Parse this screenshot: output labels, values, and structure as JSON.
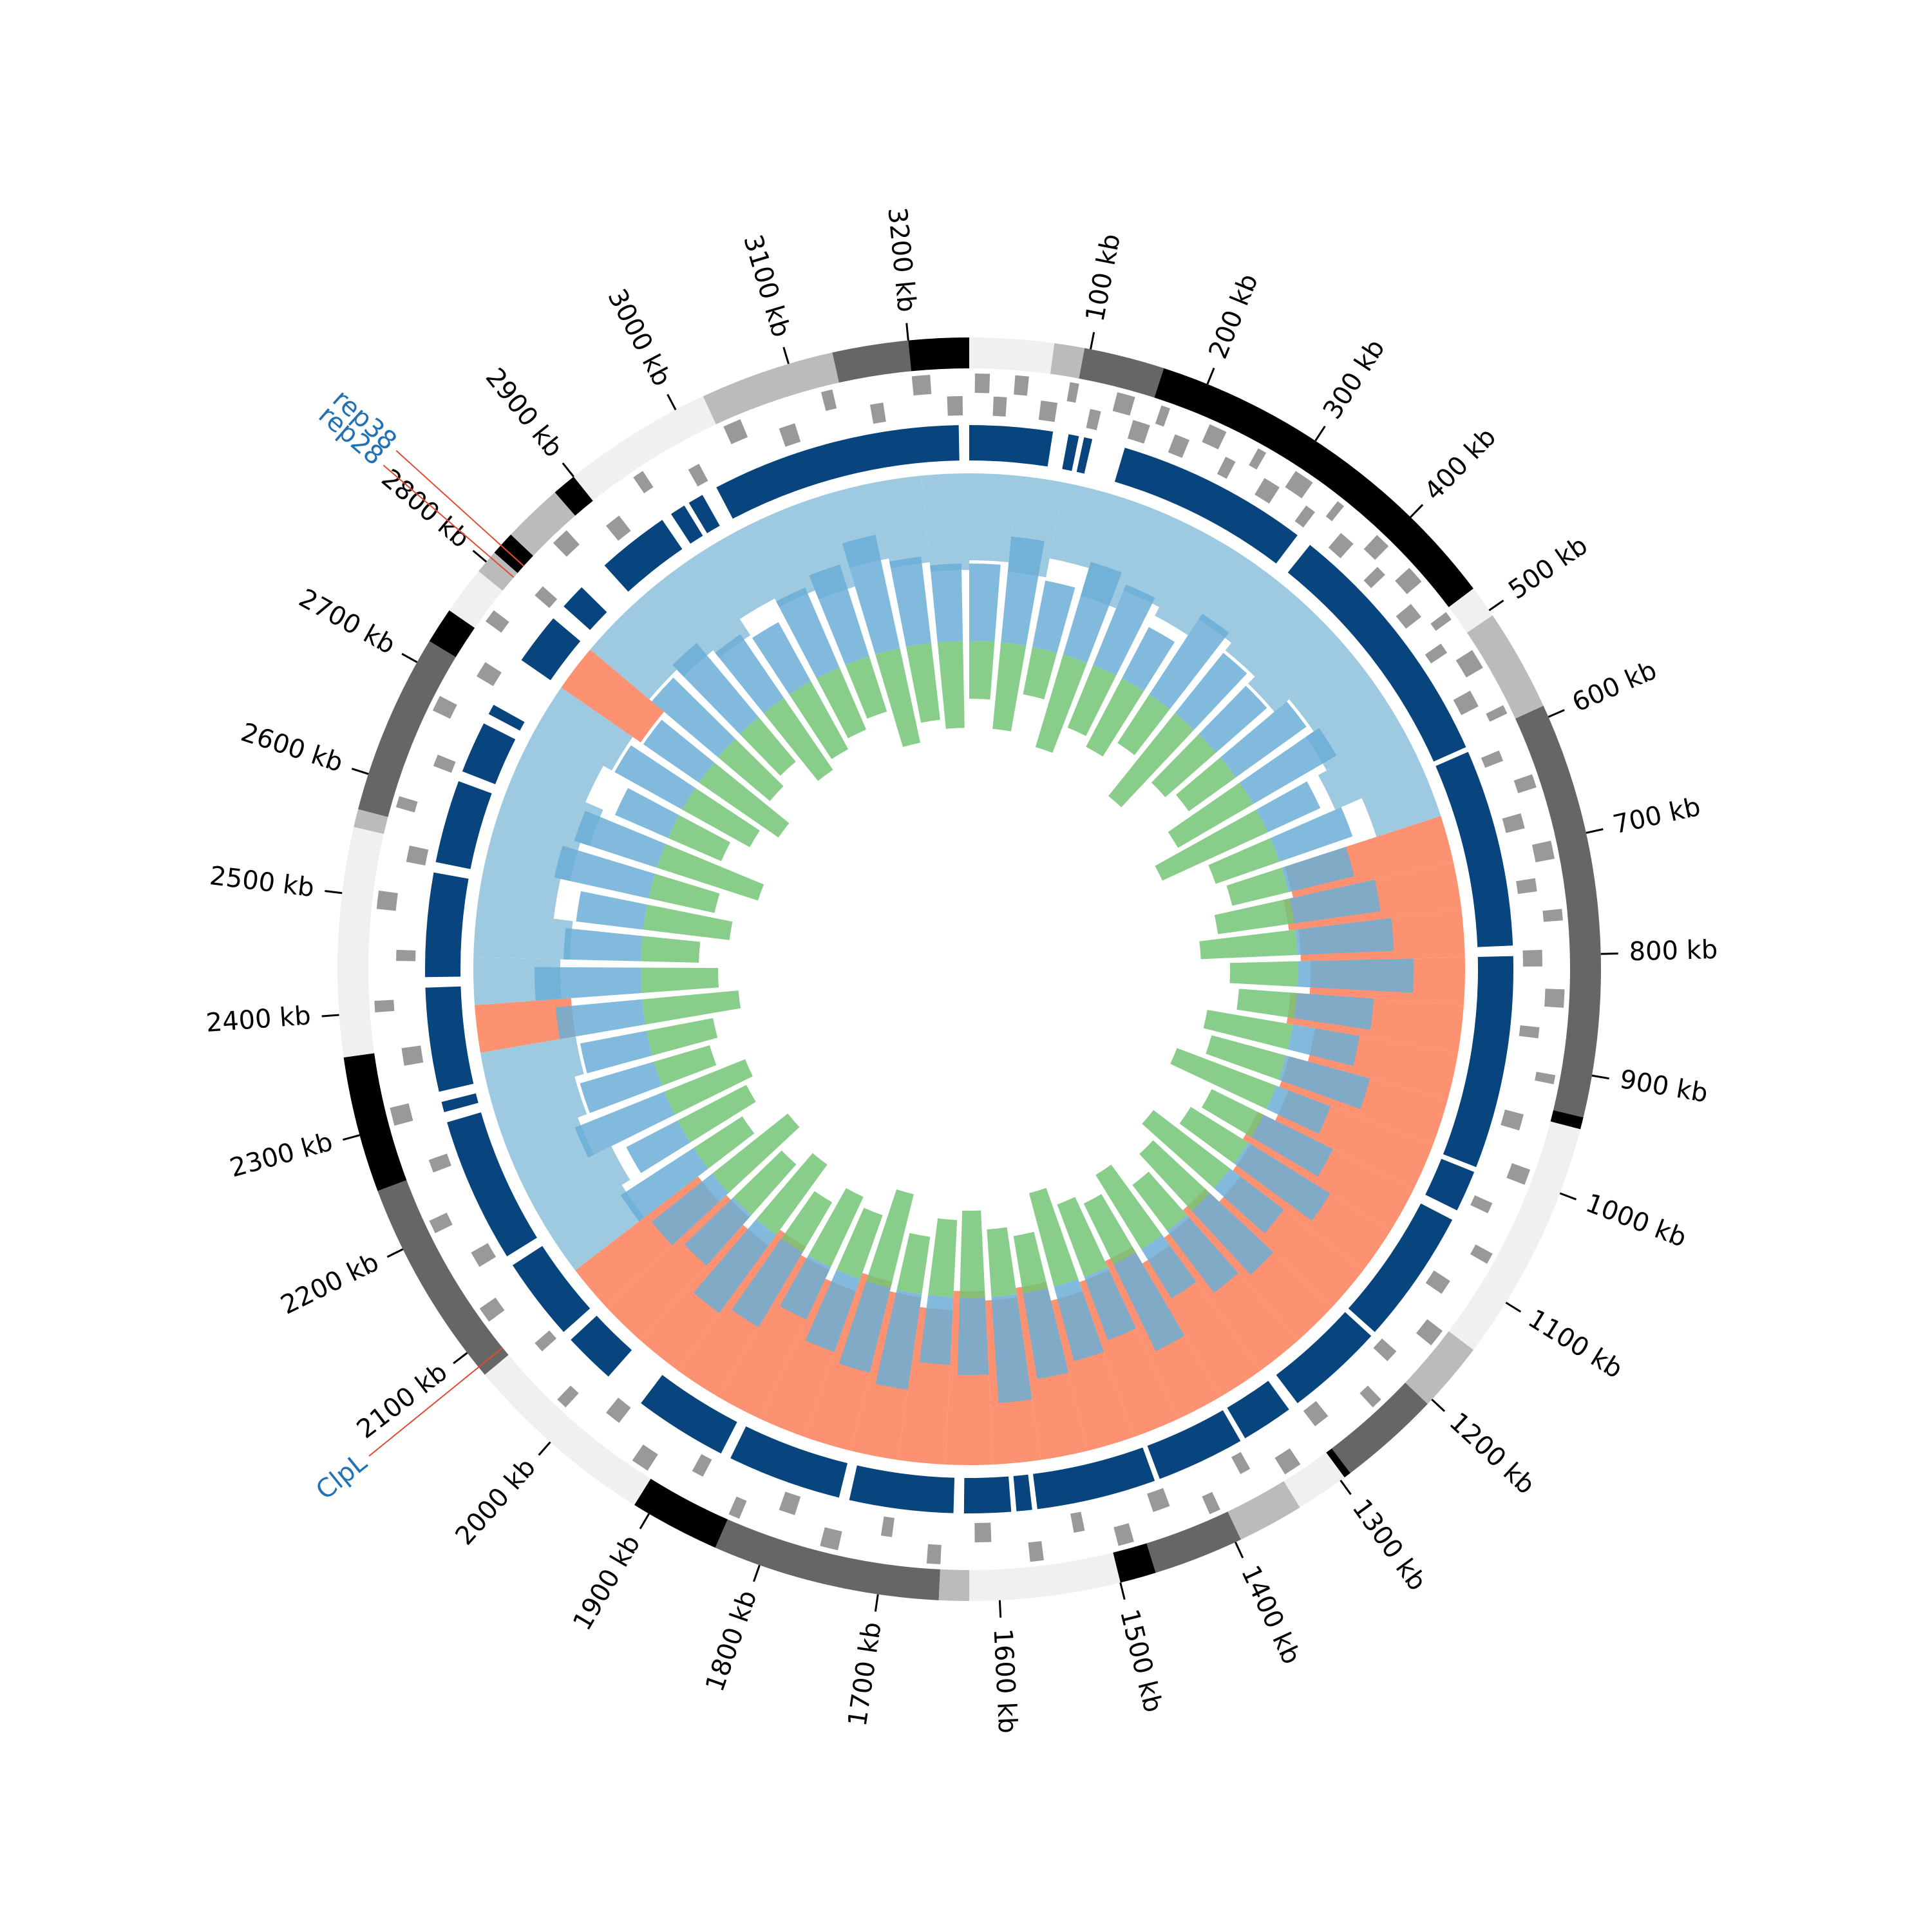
{
  "chart_data": {
    "type": "circos",
    "xlim": [
      0,
      3250
    ],
    "xticks": [
      {
        "value": 100,
        "label": "100 kb"
      },
      {
        "value": 200,
        "label": "200 kb"
      },
      {
        "value": 300,
        "label": "300 kb"
      },
      {
        "value": 400,
        "label": "400 kb"
      },
      {
        "value": 500,
        "label": "500 kb"
      },
      {
        "value": 600,
        "label": "600 kb"
      },
      {
        "value": 700,
        "label": "700 kb"
      },
      {
        "value": 800,
        "label": "800 kb"
      },
      {
        "value": 900,
        "label": "900 kb"
      },
      {
        "value": 1000,
        "label": "1000 kb"
      },
      {
        "value": 1100,
        "label": "1100 kb"
      },
      {
        "value": 1200,
        "label": "1200 kb"
      },
      {
        "value": 1300,
        "label": "1300 kb"
      },
      {
        "value": 1400,
        "label": "1400 kb"
      },
      {
        "value": 1500,
        "label": "1500 kb"
      },
      {
        "value": 1600,
        "label": "1600 kb"
      },
      {
        "value": 1700,
        "label": "1700 kb"
      },
      {
        "value": 1800,
        "label": "1800 kb"
      },
      {
        "value": 1900,
        "label": "1900 kb"
      },
      {
        "value": 2000,
        "label": "2000 kb"
      },
      {
        "value": 2100,
        "label": "2100 kb"
      },
      {
        "value": 2200,
        "label": "2200 kb"
      },
      {
        "value": 2300,
        "label": "2300 kb"
      },
      {
        "value": 2400,
        "label": "2400 kb"
      },
      {
        "value": 2500,
        "label": "2500 kb"
      },
      {
        "value": 2600,
        "label": "2600 kb"
      },
      {
        "value": 2700,
        "label": "2700 kb"
      },
      {
        "value": 2800,
        "label": "2800 kb"
      },
      {
        "value": 2900,
        "label": "2900 kb"
      },
      {
        "value": 3000,
        "label": "3000 kb"
      },
      {
        "value": 3100,
        "label": "3100 kb"
      },
      {
        "value": 3200,
        "label": "3200 kb"
      }
    ],
    "bands": [
      {
        "start": 0,
        "end": 70,
        "color": "#f0f0f0"
      },
      {
        "start": 70,
        "end": 95,
        "color": "#bbbbbb"
      },
      {
        "start": 95,
        "end": 162,
        "color": "#666666"
      },
      {
        "start": 162,
        "end": 478,
        "color": "#000000"
      },
      {
        "start": 478,
        "end": 505,
        "color": "#f0f0f0"
      },
      {
        "start": 505,
        "end": 590,
        "color": "#bbbbbb"
      },
      {
        "start": 590,
        "end": 935,
        "color": "#666666"
      },
      {
        "start": 935,
        "end": 945,
        "color": "#000000"
      },
      {
        "start": 945,
        "end": 1147,
        "color": "#f0f0f0"
      },
      {
        "start": 1147,
        "end": 1205,
        "color": "#bbbbbb"
      },
      {
        "start": 1205,
        "end": 1290,
        "color": "#666666"
      },
      {
        "start": 1290,
        "end": 1296,
        "color": "#000000"
      },
      {
        "start": 1296,
        "end": 1340,
        "color": "#f0f0f0"
      },
      {
        "start": 1340,
        "end": 1395,
        "color": "#bbbbbb"
      },
      {
        "start": 1395,
        "end": 1470,
        "color": "#666666"
      },
      {
        "start": 1470,
        "end": 1500,
        "color": "#000000"
      },
      {
        "start": 1500,
        "end": 1625,
        "color": "#f0f0f0"
      },
      {
        "start": 1625,
        "end": 1650,
        "color": "#bbbbbb"
      },
      {
        "start": 1650,
        "end": 1839,
        "color": "#666666"
      },
      {
        "start": 1839,
        "end": 1914,
        "color": "#000000"
      },
      {
        "start": 1914,
        "end": 2077,
        "color": "#f0f0f0"
      },
      {
        "start": 2077,
        "end": 2252,
        "color": "#666666"
      },
      {
        "start": 2252,
        "end": 2365,
        "color": "#000000"
      },
      {
        "start": 2365,
        "end": 2555,
        "color": "#f0f0f0"
      },
      {
        "start": 2555,
        "end": 2570,
        "color": "#bbbbbb"
      },
      {
        "start": 2570,
        "end": 2720,
        "color": "#666666"
      },
      {
        "start": 2720,
        "end": 2750,
        "color": "#000000"
      },
      {
        "start": 2750,
        "end": 2790,
        "color": "#f0f0f0"
      },
      {
        "start": 2790,
        "end": 2810,
        "color": "#bbbbbb"
      },
      {
        "start": 2810,
        "end": 2830,
        "color": "#000000"
      },
      {
        "start": 2830,
        "end": 2880,
        "color": "#bbbbbb"
      },
      {
        "start": 2880,
        "end": 2900,
        "color": "#000000"
      },
      {
        "start": 2900,
        "end": 3025,
        "color": "#f0f0f0"
      },
      {
        "start": 3025,
        "end": 3137,
        "color": "#bbbbbb"
      },
      {
        "start": 3137,
        "end": 3200,
        "color": "#666666"
      },
      {
        "start": 3200,
        "end": 3250,
        "color": "#000000"
      }
    ],
    "gene_color": "#999999",
    "genes": {
      "plus": [
        [
          5,
          18
        ],
        [
          40,
          52
        ],
        [
          88,
          96
        ],
        [
          130,
          146
        ],
        [
          170,
          178
        ],
        [
          215,
          231
        ],
        [
          262,
          270
        ],
        [
          300,
          318
        ],
        [
          345,
          352
        ],
        [
          390,
          404
        ],
        [
          430,
          446
        ],
        [
          480,
          488
        ],
        [
          520,
          538
        ],
        [
          575,
          583
        ],
        [
          640,
          652
        ],
        [
          700,
          716
        ],
        [
          760,
          770
        ],
        [
          830,
          846
        ],
        [
          905,
          913
        ],
        [
          990,
          1004
        ],
        [
          1070,
          1080
        ],
        [
          1150,
          1166
        ],
        [
          1230,
          1240
        ],
        [
          1320,
          1336
        ],
        [
          1400,
          1410
        ],
        [
          1480,
          1494
        ],
        [
          1560,
          1572
        ],
        [
          1650,
          1662
        ],
        [
          1740,
          1756
        ],
        [
          1830,
          1840
        ],
        [
          1920,
          1936
        ],
        [
          2010,
          2020
        ],
        [
          2110,
          2124
        ],
        [
          2200,
          2212
        ],
        [
          2300,
          2316
        ],
        [
          2400,
          2410
        ],
        [
          2490,
          2506
        ],
        [
          2580,
          2590
        ],
        [
          2670,
          2684
        ],
        [
          2760,
          2772
        ],
        [
          2850,
          2866
        ],
        [
          2940,
          2950
        ],
        [
          3030,
          3046
        ],
        [
          3120,
          3130
        ],
        [
          3200,
          3216
        ]
      ],
      "minus": [
        [
          22,
          34
        ],
        [
          65,
          80
        ],
        [
          110,
          120
        ],
        [
          150,
          166
        ],
        [
          190,
          204
        ],
        [
          240,
          250
        ],
        [
          280,
          296
        ],
        [
          325,
          335
        ],
        [
          365,
          380
        ],
        [
          410,
          420
        ],
        [
          455,
          470
        ],
        [
          500,
          510
        ],
        [
          550,
          566
        ],
        [
          610,
          620
        ],
        [
          670,
          684
        ],
        [
          730,
          742
        ],
        [
          795,
          810
        ],
        [
          865,
          875
        ],
        [
          945,
          960
        ],
        [
          1030,
          1040
        ],
        [
          1110,
          1124
        ],
        [
          1190,
          1202
        ],
        [
          1275,
          1290
        ],
        [
          1360,
          1370
        ],
        [
          1440,
          1456
        ],
        [
          1520,
          1530
        ],
        [
          1605,
          1620
        ],
        [
          1695,
          1705
        ],
        [
          1785,
          1800
        ],
        [
          1875,
          1886
        ],
        [
          1965,
          1980
        ],
        [
          2060,
          2070
        ],
        [
          2155,
          2170
        ],
        [
          2250,
          2262
        ],
        [
          2350,
          2366
        ],
        [
          2445,
          2455
        ],
        [
          2535,
          2550
        ],
        [
          2625,
          2636
        ],
        [
          2715,
          2730
        ],
        [
          2805,
          2816
        ],
        [
          2895,
          2910
        ],
        [
          2985,
          2996
        ],
        [
          3075,
          3090
        ],
        [
          3160,
          3172
        ],
        [
          3230,
          3244
        ]
      ]
    },
    "blocks": {
      "color": "#08457e",
      "segments": [
        [
          0,
          80
        ],
        [
          95,
          105
        ],
        [
          110,
          118
        ],
        [
          150,
          335
        ],
        [
          350,
          595
        ],
        [
          600,
          790
        ],
        [
          800,
          1005
        ],
        [
          1010,
          1050
        ],
        [
          1060,
          1190
        ],
        [
          1195,
          1290
        ],
        [
          1300,
          1350
        ],
        [
          1355,
          1440
        ],
        [
          1445,
          1560
        ],
        [
          1565,
          1580
        ],
        [
          1585,
          1630
        ],
        [
          1640,
          1740
        ],
        [
          1750,
          1860
        ],
        [
          1870,
          1960
        ],
        [
          2000,
          2050
        ],
        [
          2060,
          2140
        ],
        [
          2150,
          2290
        ],
        [
          2300,
          2310
        ],
        [
          2320,
          2420
        ],
        [
          2430,
          2530
        ],
        [
          2540,
          2620
        ],
        [
          2630,
          2680
        ],
        [
          2690,
          2700
        ],
        [
          2750,
          2800
        ],
        [
          2815,
          2840
        ],
        [
          2870,
          2940
        ],
        [
          2950,
          2965
        ],
        [
          2970,
          2985
        ],
        [
          3000,
          3240
        ]
      ]
    },
    "x": [
      0,
      50,
      100,
      150,
      200,
      250,
      300,
      350,
      400,
      450,
      500,
      550,
      600,
      650,
      700,
      750,
      800,
      850,
      900,
      950,
      1000,
      1050,
      1100,
      1150,
      1200,
      1250,
      1300,
      1350,
      1400,
      1450,
      1500,
      1550,
      1600,
      1650,
      1700,
      1750,
      1800,
      1850,
      1900,
      1950,
      2000,
      2050,
      2100,
      2150,
      2200,
      2250,
      2300,
      2350,
      2400,
      2450,
      2500,
      2550,
      2600,
      2650,
      2700,
      2750,
      2800,
      2850,
      2900,
      2950,
      3000,
      3050,
      3100,
      3150,
      3200
    ],
    "gc": {
      "positive_color": "#9ecae1",
      "negative_color": "#fc9272",
      "values": [
        0.45,
        0.5,
        0.4,
        0.55,
        0.45,
        0.5,
        0.4,
        0.45,
        0.5,
        0.4,
        0.45,
        0.5,
        0.35,
        -0.85,
        -0.9,
        -0.85,
        -0.8,
        -0.9,
        -0.75,
        -0.85,
        -0.8,
        -0.9,
        -0.85,
        -0.8,
        -0.9,
        -0.85,
        -0.8,
        -0.9,
        -0.85,
        -0.8,
        -0.9,
        -0.85,
        -0.9,
        -0.8,
        -0.85,
        -0.9,
        -0.8,
        -0.85,
        -0.9,
        -0.8,
        -0.85,
        -0.8,
        0.45,
        0.5,
        0.4,
        0.45,
        0.5,
        -0.5,
        0.45,
        0.5,
        0.4,
        0.45,
        0.5,
        0.4,
        0.45,
        -0.5,
        0.4,
        0.45,
        0.5,
        0.4,
        0.45,
        0.5,
        0.4,
        0.45,
        0.5
      ]
    },
    "skew": {
      "series": [
        {
          "color": "#6baed6",
          "values": [
            0.4,
            0.55,
            0.35,
            0.5,
            0.45,
            0.3,
            0.5,
            0.4,
            0.35,
            0.45,
            0.5,
            0.3,
            0.4,
            0.35,
            0.45,
            0.5,
            0.6,
            0.4,
            0.35,
            0.45,
            0.3,
            0.4,
            0.5,
            0.35,
            0.45,
            0.4,
            0.3,
            0.5,
            0.35,
            0.4,
            0.45,
            0.55,
            0.4,
            0.35,
            0.5,
            0.45,
            0.4,
            0.3,
            0.45,
            0.5,
            0.35,
            0.4,
            0.45,
            0.3,
            0.5,
            0.4,
            0.35,
            0.45,
            0.55,
            0.4,
            0.35,
            0.5,
            0.45,
            0.3,
            0.4,
            0.35,
            0.45,
            0.5,
            0.4,
            0.35,
            0.45,
            0.5,
            0.6,
            0.45,
            0.4
          ]
        },
        {
          "color": "#74c476",
          "values": [
            -0.3,
            -0.45,
            -0.25,
            -0.5,
            -0.35,
            -0.4,
            -0.3,
            -0.55,
            -0.35,
            -0.3,
            -0.45,
            -0.6,
            -0.35,
            -0.3,
            -0.4,
            -0.5,
            -0.35,
            -0.3,
            -0.45,
            -0.4,
            -0.55,
            -0.3,
            -0.35,
            -0.5,
            -0.4,
            -0.3,
            -0.45,
            -0.35,
            -0.4,
            -0.5,
            -0.3,
            -0.35,
            -0.45,
            -0.4,
            -0.3,
            -0.5,
            -0.35,
            -0.4,
            -0.3,
            -0.45,
            -0.35,
            -0.5,
            -0.3,
            -0.4,
            -0.45,
            -0.3,
            -0.35,
            -0.5,
            -0.4,
            -0.3,
            -0.45,
            -0.35,
            -0.55,
            -0.3,
            -0.4,
            -0.5,
            -0.35,
            -0.3,
            -0.45,
            -0.4,
            -0.35,
            -0.3,
            -0.5,
            -0.4,
            -0.45
          ]
        }
      ]
    },
    "annotations": [
      {
        "label": "rep28",
        "position": 2805
      },
      {
        "label": "rep38",
        "position": 2818
      },
      {
        "label": "ClpL",
        "position": 2085
      }
    ],
    "annotation_color": "#2171b5",
    "annotation_line_color": "#e34a33"
  }
}
